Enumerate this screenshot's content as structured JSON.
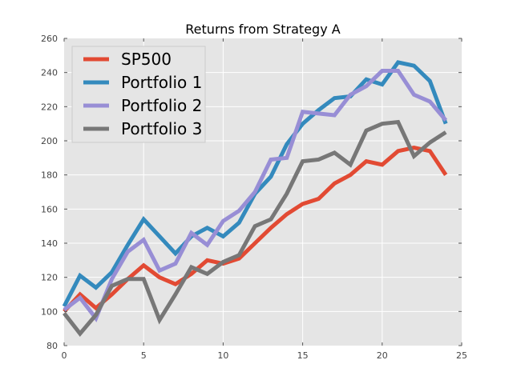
{
  "chart_data": {
    "type": "line",
    "title": "Returns from Strategy A",
    "xlabel": "",
    "ylabel": "",
    "xlim": [
      0,
      25
    ],
    "ylim": [
      80,
      260
    ],
    "xticks": [
      0,
      5,
      10,
      15,
      20,
      25
    ],
    "yticks": [
      80,
      100,
      120,
      140,
      160,
      180,
      200,
      220,
      240,
      260
    ],
    "grid": true,
    "legend_position": "top-left",
    "x": [
      0,
      1,
      2,
      3,
      4,
      5,
      6,
      7,
      8,
      9,
      10,
      11,
      12,
      13,
      14,
      15,
      16,
      17,
      18,
      19,
      20,
      21,
      22,
      23,
      24
    ],
    "series": [
      {
        "name": "SP500",
        "color": "#E24A33",
        "values": [
          100,
          110,
          102,
          110,
          119,
          127,
          120,
          116,
          122,
          130,
          128,
          131,
          140,
          149,
          157,
          163,
          166,
          175,
          180,
          188,
          186,
          194,
          196,
          194,
          180
        ]
      },
      {
        "name": "Portfolio 1",
        "color": "#348ABD",
        "values": [
          103,
          121,
          114,
          123,
          139,
          154,
          144,
          134,
          144,
          149,
          144,
          152,
          169,
          179,
          198,
          210,
          218,
          225,
          226,
          236,
          233,
          246,
          244,
          235,
          210
        ]
      },
      {
        "name": "Portfolio 2",
        "color": "#988ED5",
        "values": [
          101,
          108,
          96,
          119,
          135,
          142,
          124,
          128,
          146,
          139,
          153,
          159,
          170,
          189,
          190,
          217,
          216,
          215,
          227,
          232,
          241,
          241,
          227,
          223,
          212
        ]
      },
      {
        "name": "Portfolio 3",
        "color": "#777777",
        "values": [
          99,
          87,
          98,
          115,
          119,
          119,
          95,
          110,
          126,
          122,
          129,
          133,
          150,
          154,
          169,
          188,
          189,
          193,
          186,
          206,
          210,
          211,
          191,
          199,
          205
        ]
      }
    ]
  }
}
